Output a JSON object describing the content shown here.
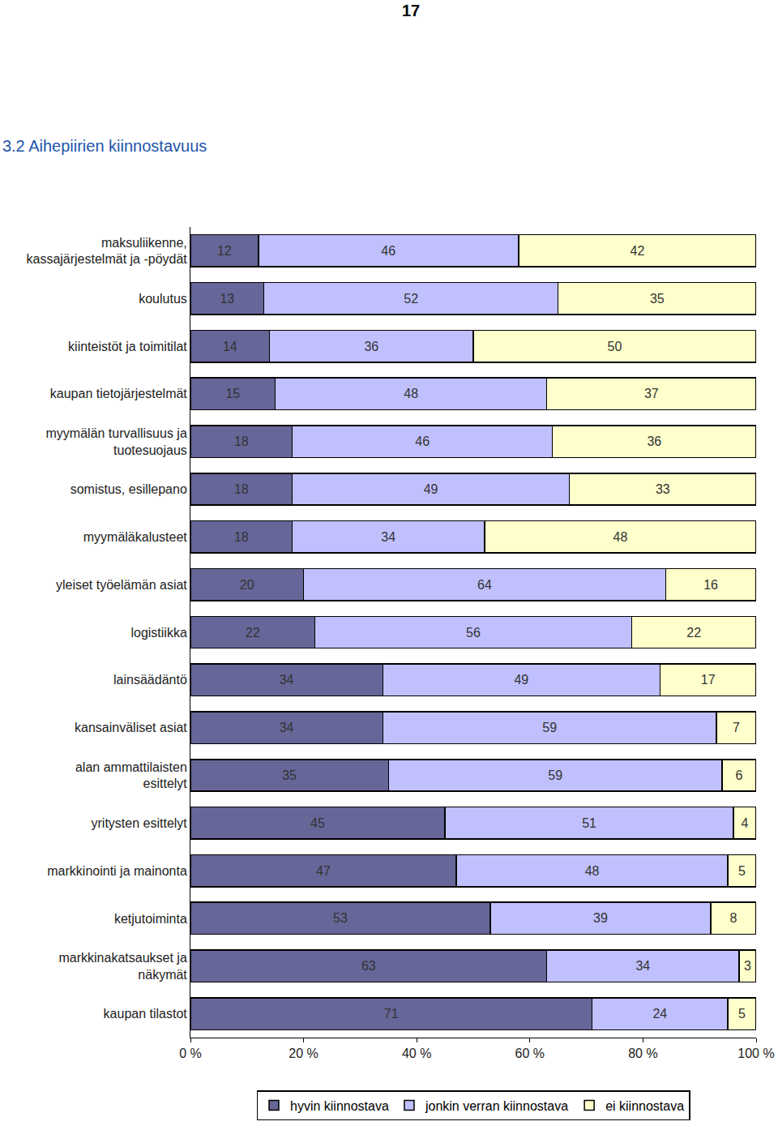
{
  "chart_data": {
    "type": "bar",
    "title": "3.2 Aihepiirien kiinnostavuus",
    "annotations": [
      "17"
    ],
    "orientation": "horizontal",
    "stacked": true,
    "data_labels": true,
    "grid": false,
    "legend": "bottom",
    "categories": [
      "maksuliikenne, kassajärjestelmät ja -pöydät",
      "koulutus",
      "kiinteistöt ja toimitilat",
      "kaupan tietojärjestelmät",
      "myymälän turvallisuus ja tuotesuojaus",
      "somistus, esillepano",
      "myymäläkalusteet",
      "yleiset työelämän asiat",
      "logistiikka",
      "lainsäädäntö",
      "kansainväliset asiat",
      "alan ammattilaisten esittelyt",
      "yritysten esittelyt",
      "markkinointi ja mainonta",
      "ketjutoiminta",
      "markkinakatsaukset ja näkymät",
      "kaupan tilastot"
    ],
    "series": [
      {
        "name": "hyvin kiinnostava",
        "color": "#666699",
        "values": [
          12,
          13,
          14,
          15,
          18,
          18,
          18,
          20,
          22,
          34,
          34,
          35,
          45,
          47,
          53,
          63,
          71
        ]
      },
      {
        "name": "jonkin verran kiinnostava",
        "color": "#c0c0ff",
        "values": [
          46,
          52,
          36,
          48,
          46,
          49,
          34,
          64,
          56,
          49,
          59,
          59,
          51,
          48,
          39,
          34,
          24
        ]
      },
      {
        "name": "ei kiinnostava",
        "color": "#ffffcc",
        "values": [
          42,
          35,
          50,
          37,
          36,
          33,
          48,
          16,
          22,
          17,
          7,
          6,
          4,
          5,
          8,
          3,
          5
        ]
      }
    ],
    "xlim": [
      0,
      100
    ],
    "xticks": [
      {
        "value": 0,
        "label": "0 %"
      },
      {
        "value": 20,
        "label": "20 %"
      },
      {
        "value": 40,
        "label": "40 %"
      },
      {
        "value": 60,
        "label": "60 %"
      },
      {
        "value": 80,
        "label": "80 %"
      },
      {
        "value": 100,
        "label": "100 %"
      }
    ]
  }
}
